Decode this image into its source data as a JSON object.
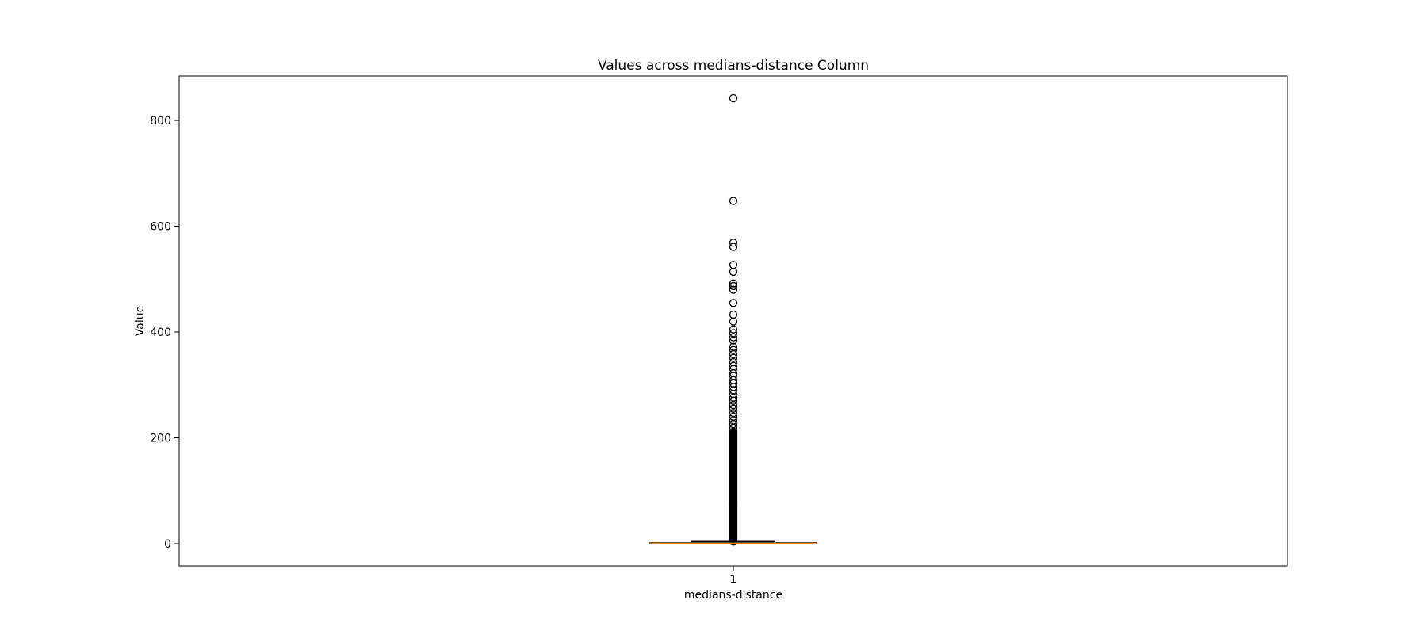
{
  "chart_data": {
    "type": "box",
    "title": "Values across medians-distance Column",
    "xlabel": "medians-distance",
    "ylabel": "Value",
    "categories": [
      "1"
    ],
    "yticks": [
      0,
      200,
      400,
      600,
      800
    ],
    "ylim": [
      -42,
      884
    ],
    "grid": false,
    "box": {
      "whisker_low": 0,
      "q1": 0.3,
      "median": 0.9,
      "q3": 1.8,
      "whisker_high": 4,
      "outliers": [
        842,
        648,
        569,
        561,
        527,
        514,
        492,
        487,
        480,
        455,
        433,
        420,
        405,
        398,
        390,
        384,
        372,
        366,
        358,
        351,
        343,
        336,
        330,
        322,
        317,
        309,
        303,
        296,
        290,
        283,
        276,
        270,
        262,
        255,
        247,
        240,
        233,
        226,
        219
      ]
    },
    "dense_outlier_range": [
      4,
      212
    ],
    "colors": {
      "box_edge": "#000000",
      "median_line": "#ff7f0e",
      "outlier_edge": "#000000",
      "axes": "#000000",
      "background": "#ffffff"
    }
  }
}
